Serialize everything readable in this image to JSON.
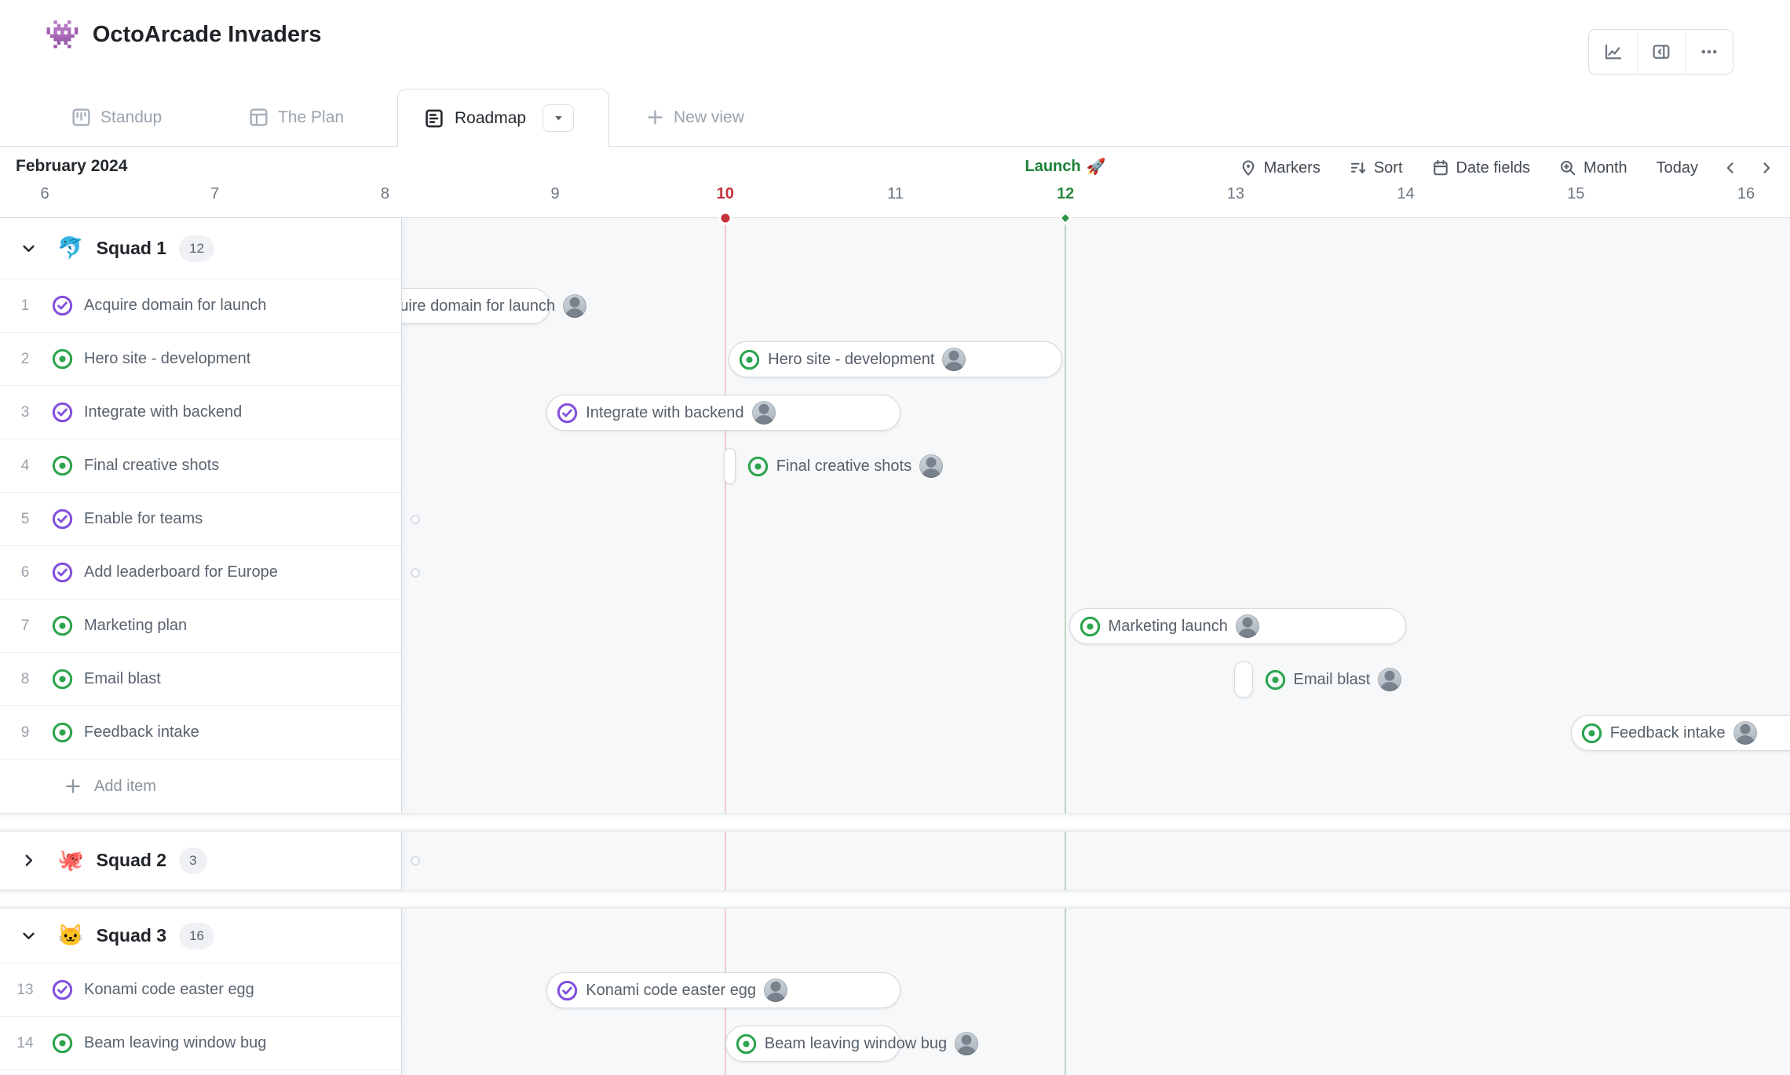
{
  "header": {
    "title_emoji": "👾",
    "title": "OctoArcade Invaders",
    "actions": [
      {
        "icon": "insights-chart-icon"
      },
      {
        "icon": "collapse-panel-icon"
      },
      {
        "icon": "ellipsis-icon"
      }
    ]
  },
  "tabs": [
    {
      "label": "Standup",
      "icon": "project-icon",
      "active": false
    },
    {
      "label": "The Plan",
      "icon": "table-icon",
      "active": false
    },
    {
      "label": "Roadmap",
      "icon": "roadmap-icon",
      "active": true,
      "has_dropdown": true
    },
    {
      "label": "New view",
      "icon": "plus-icon",
      "active": false
    }
  ],
  "date_header": {
    "month_label": "February 2024",
    "marker": {
      "text": "Launch",
      "emoji": "🚀"
    },
    "buttons": [
      {
        "label": "Markers",
        "icon": "marker-pin-icon"
      },
      {
        "label": "Sort",
        "icon": "sort-icon"
      },
      {
        "label": "Date fields",
        "icon": "calendar-icon"
      },
      {
        "label": "Month",
        "icon": "zoom-icon"
      },
      {
        "label": "Today"
      }
    ]
  },
  "timeline": {
    "days": [
      "6",
      "7",
      "8",
      "9",
      "10",
      "11",
      "12",
      "13",
      "14",
      "15",
      "16"
    ],
    "today_day": "10",
    "launch_day": "12"
  },
  "colors": {
    "open_status": "#2da44e",
    "done_status": "#8250df",
    "today": "#c2313c",
    "launch": "#2b9348",
    "timeline_bg": "#f6f8fa"
  },
  "groups": [
    {
      "name": "Squad 1",
      "emoji": "🐬",
      "count": "12",
      "collapsed": false,
      "add_item_label": "Add item",
      "items": [
        {
          "num": "1",
          "status": "done",
          "label": "Acquire domain for launch",
          "bar": {
            "label": "Acquire domain for launch",
            "start_day": 7.78,
            "end_day": 8.97,
            "mode": "clipped-left",
            "show_icon": false
          }
        },
        {
          "num": "2",
          "status": "open",
          "label": "Hero site - development",
          "bar": {
            "label": "Hero site - development",
            "start_day": 10.02,
            "end_day": 11.98,
            "mode": "inside",
            "show_icon": true
          }
        },
        {
          "num": "3",
          "status": "done",
          "label": "Integrate with backend",
          "bar": {
            "label": "Integrate with backend",
            "start_day": 8.95,
            "end_day": 11.03,
            "mode": "inside",
            "show_icon": true
          }
        },
        {
          "num": "4",
          "status": "open",
          "label": "Final creative shots",
          "bar": {
            "label": "Final creative shots",
            "start_day": 9.99,
            "end_day": 10.06,
            "mode": "outside",
            "show_icon": true,
            "tiny": true
          }
        },
        {
          "num": "5",
          "status": "done",
          "label": "Enable for teams",
          "edge_hint": true
        },
        {
          "num": "6",
          "status": "done",
          "label": "Add leaderboard for Europe",
          "edge_hint": true
        },
        {
          "num": "7",
          "status": "open",
          "label": "Marketing plan",
          "bar": {
            "label": "Marketing launch",
            "start_day": 12.02,
            "end_day": 14.0,
            "mode": "inside",
            "show_icon": true
          }
        },
        {
          "num": "8",
          "status": "open",
          "label": "Email blast",
          "bar": {
            "label": "Email blast",
            "start_day": 12.99,
            "end_day": 13.1,
            "mode": "outside",
            "show_icon": true,
            "tiny": true
          }
        },
        {
          "num": "9",
          "status": "open",
          "label": "Feedback intake",
          "bar": {
            "label": "Feedback intake",
            "start_day": 14.97,
            "end_day": 17.1,
            "mode": "inside",
            "show_icon": true
          }
        }
      ]
    },
    {
      "name": "Squad 2",
      "emoji": "🐙",
      "count": "3",
      "collapsed": true,
      "edge_hint": true,
      "items": []
    },
    {
      "name": "Squad 3",
      "emoji": "🐱",
      "count": "16",
      "collapsed": false,
      "items": [
        {
          "num": "13",
          "status": "done",
          "label": "Konami code easter egg",
          "bar": {
            "label": "Konami code easter egg",
            "start_day": 8.95,
            "end_day": 11.03,
            "mode": "inside",
            "show_icon": true
          }
        },
        {
          "num": "14",
          "status": "open",
          "label": "Beam leaving window bug",
          "bar": {
            "label": "Beam leaving window bug",
            "start_day": 10.0,
            "end_day": 11.03,
            "mode": "overflow",
            "show_icon": true
          }
        }
      ]
    }
  ]
}
